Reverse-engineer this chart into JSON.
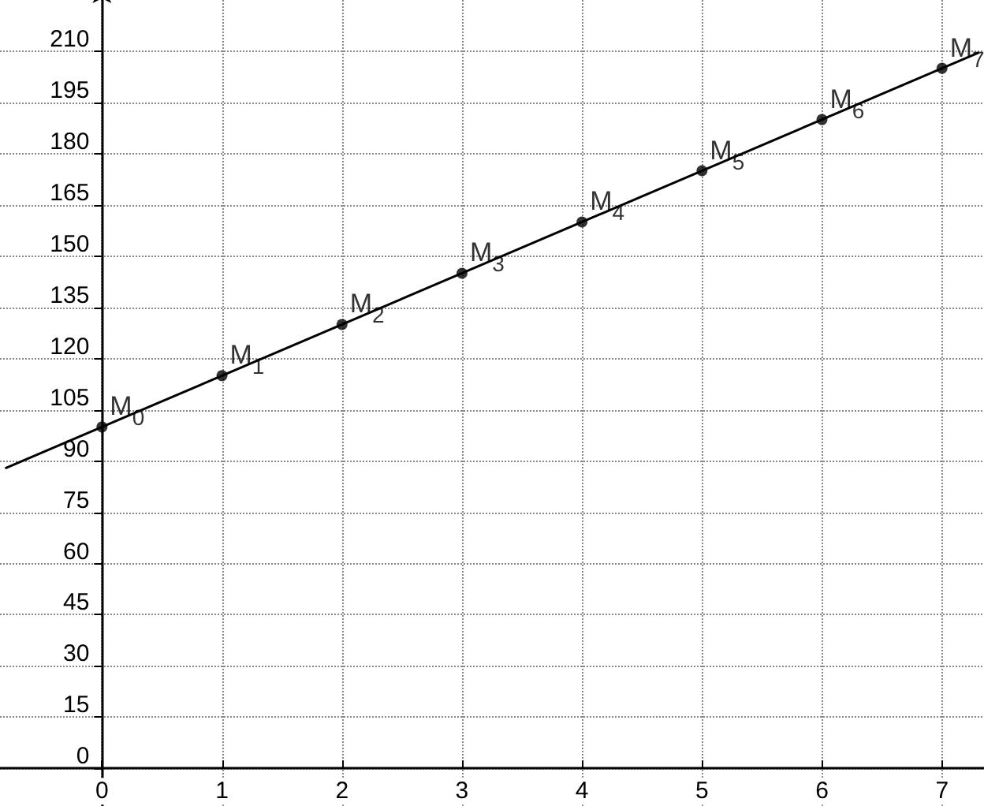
{
  "chart_data": {
    "type": "scatter",
    "xlim": [
      -0.85,
      7.35
    ],
    "ylim": [
      -11,
      225
    ],
    "xticks": [
      0,
      1,
      2,
      3,
      4,
      5,
      6,
      7
    ],
    "yticks": [
      0,
      15,
      30,
      45,
      60,
      75,
      90,
      105,
      120,
      135,
      150,
      165,
      180,
      195,
      210
    ],
    "grid": true,
    "series": [
      {
        "type": "line",
        "color": "#000000",
        "marker": "none",
        "line_style": "solid",
        "x": [
          -0.8,
          7.3
        ],
        "values": [
          88,
          209.5
        ]
      },
      {
        "color": "#000000",
        "marker": "circle",
        "x": [
          0,
          1,
          2,
          3,
          4,
          5,
          6,
          7
        ],
        "values": [
          100,
          115,
          130,
          145,
          160,
          175,
          190,
          205
        ]
      }
    ],
    "annotations": [
      {
        "text": "M$_{0}$",
        "x": 0,
        "y": 100
      },
      {
        "text": "M$_{1}$",
        "x": 1,
        "y": 115
      },
      {
        "text": "M$_{2}$",
        "x": 2,
        "y": 130
      },
      {
        "text": "M$_{3}$",
        "x": 3,
        "y": 145
      },
      {
        "text": "M$_{4}$",
        "x": 4,
        "y": 160
      },
      {
        "text": "M$_{5}$",
        "x": 5,
        "y": 175
      },
      {
        "text": "M$_{6}$",
        "x": 6,
        "y": 190
      },
      {
        "text": "M$_{7}$",
        "x": 7,
        "y": 205
      }
    ]
  }
}
